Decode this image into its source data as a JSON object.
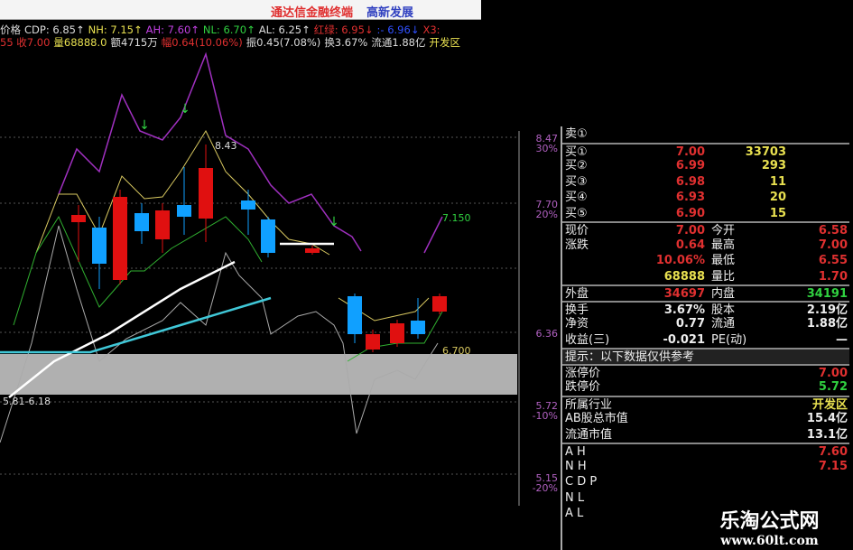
{
  "window": {
    "app_title": "通达信金融终端",
    "stock_name": "高新发展"
  },
  "indicators": {
    "row1": [
      {
        "t": "价格",
        "c": "#ddd"
      },
      {
        "t": "CDP: 6.85↑",
        "c": "#ddd"
      },
      {
        "t": "NH: 7.15↑",
        "c": "#e8e050"
      },
      {
        "t": "AH: 7.60↑",
        "c": "#c040e0"
      },
      {
        "t": "NL: 6.70↑",
        "c": "#30d040"
      },
      {
        "t": "AL: 6.25↑",
        "c": "#ddd"
      },
      {
        "t": "红绿: 6.95↓",
        "c": "#e03030"
      },
      {
        "t": ":-  6.96↓",
        "c": "#3050ff"
      },
      {
        "t": "X3:",
        "c": "#e03030"
      }
    ],
    "row2": [
      {
        "t": "55 收7.00",
        "c": "#e03030"
      },
      {
        "t": "量68888.0",
        "c": "#e8e050"
      },
      {
        "t": "额4715万",
        "c": "#ddd"
      },
      {
        "t": "幅0.64(10.06%)",
        "c": "#e03030"
      },
      {
        "t": "振0.45(7.08%)",
        "c": "#ddd"
      },
      {
        "t": "换3.67%",
        "c": "#ddd"
      },
      {
        "t": "流通1.88亿",
        "c": "#ddd"
      },
      {
        "t": "开发区",
        "c": "#e8e050"
      }
    ]
  },
  "chart": {
    "labels": {
      "high_mark": "8.43",
      "range": "5.81-6.18",
      "nh_value": "7.150",
      "nl_value": "6.700"
    },
    "axis": [
      {
        "price": "8.47",
        "pct": "30%"
      },
      {
        "price": "7.70",
        "pct": "20%"
      },
      {
        "price": "6.36",
        "pct": ""
      },
      {
        "price": "5.72",
        "pct": "-10%"
      },
      {
        "price": "5.15",
        "pct": "-20%"
      }
    ],
    "colors": {
      "up": "#e01010",
      "down": "#10a0ff",
      "band": "#b0b0b0"
    }
  },
  "quote": {
    "sell": [
      {
        "label": "卖①",
        "price": "",
        "vol": ""
      }
    ],
    "buy": [
      {
        "label": "买①",
        "price": "7.00",
        "vol": "33703"
      },
      {
        "label": "买②",
        "price": "6.99",
        "vol": "293"
      },
      {
        "label": "买③",
        "price": "6.98",
        "vol": "11"
      },
      {
        "label": "买④",
        "price": "6.93",
        "vol": "20"
      },
      {
        "label": "买⑤",
        "price": "6.90",
        "vol": "15"
      }
    ],
    "stats": [
      {
        "l": "现价",
        "v": "7.00",
        "l2": "今开",
        "v2": "6.58"
      },
      {
        "l": "涨跌",
        "v": "0.64",
        "l2": "最高",
        "v2": "7.00"
      },
      {
        "l": "",
        "v": "10.06%",
        "l2": "最低",
        "v2": "6.55"
      },
      {
        "l": "",
        "v": "68888",
        "l2": "量比",
        "v2": "1.70"
      }
    ],
    "outer": {
      "l": "外盘",
      "v": "34697",
      "l2": "内盘",
      "v2": "34191"
    },
    "fund": [
      {
        "l": "换手",
        "v": "3.67%",
        "l2": "股本",
        "v2": "2.19亿"
      },
      {
        "l": "净资",
        "v": "0.77",
        "l2": "流通",
        "v2": "1.88亿"
      },
      {
        "l": "收益(三)",
        "v": "-0.021",
        "l2": "PE(动)",
        "v2": "—"
      }
    ],
    "tip": "提示：以下数据仅供参考",
    "limits": [
      {
        "l": "涨停价",
        "v": "7.00"
      },
      {
        "l": "跌停价",
        "v": "5.72"
      }
    ],
    "info": [
      {
        "l": "所属行业",
        "v": "开发区"
      },
      {
        "l": "AB股总市值",
        "v": "15.4亿"
      },
      {
        "l": "流通市值",
        "v": "13.1亿"
      }
    ],
    "levels": [
      {
        "l": "A H",
        "v": "7.60"
      },
      {
        "l": "N H",
        "v": "7.15"
      },
      {
        "l": "C D P",
        "v": ""
      },
      {
        "l": "N L",
        "v": ""
      },
      {
        "l": "A L",
        "v": ""
      }
    ]
  },
  "watermark": {
    "name": "乐淘公式网",
    "url": "www.60lt.com"
  }
}
